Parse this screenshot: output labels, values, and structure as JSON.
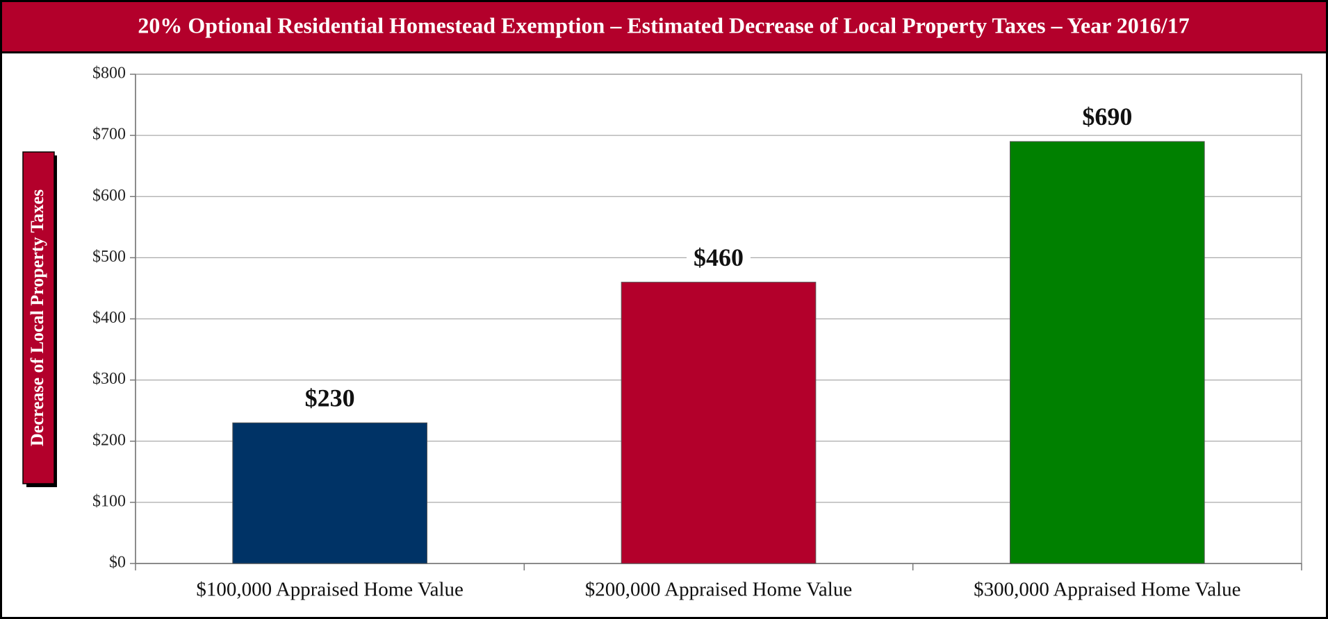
{
  "chart_data": {
    "type": "bar",
    "title": "20% Optional Residential Homestead Exemption – Estimated Decrease of  Local Property Taxes – Year 2016/17",
    "ylabel": "Decrease of Local Property Taxes",
    "categories": [
      "$100,000 Appraised Home Value",
      "$200,000 Appraised Home Value",
      "$300,000 Appraised Home Value"
    ],
    "values": [
      230,
      460,
      690
    ],
    "value_labels": [
      "$230",
      "$460",
      "$690"
    ],
    "colors": [
      "#003366",
      "#b3002b",
      "#008000"
    ],
    "ylim": [
      0,
      800
    ],
    "yticks": [
      {
        "value": 0,
        "label": "$0"
      },
      {
        "value": 100,
        "label": "$100"
      },
      {
        "value": 200,
        "label": "$200"
      },
      {
        "value": 300,
        "label": "$300"
      },
      {
        "value": 400,
        "label": "$400"
      },
      {
        "value": 500,
        "label": "$500"
      },
      {
        "value": 600,
        "label": "$600"
      },
      {
        "value": 700,
        "label": "$700"
      },
      {
        "value": 800,
        "label": "$800"
      }
    ],
    "grid": true
  }
}
